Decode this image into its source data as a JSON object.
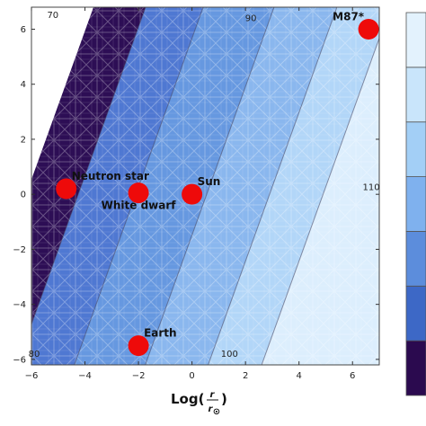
{
  "chart_data": {
    "type": "scatter",
    "title": "",
    "xlabel": {
      "prefix": "Log(",
      "numerator": "r",
      "denominator": "r",
      "denominator_subscript": "⊙",
      "suffix": ")"
    },
    "ylabel": "",
    "xlim": [
      -6,
      7
    ],
    "ylim": [
      -6.2,
      6.8
    ],
    "xticks": [
      -6,
      -4,
      -2,
      0,
      2,
      4,
      6
    ],
    "yticks": [
      -6,
      -4,
      -2,
      0,
      2,
      4,
      6
    ],
    "grid": false,
    "background": {
      "kind": "filled-contour",
      "contour_levels": [
        {
          "label": "70",
          "x": -5.2,
          "y": 6.4
        },
        {
          "label": "80",
          "x": -5.9,
          "y": -5.9
        },
        {
          "label": "90",
          "x": 2.2,
          "y": 6.3
        },
        {
          "label": "100",
          "x": 1.4,
          "y": -5.9
        },
        {
          "label": "110",
          "x": 6.7,
          "y": 0.15
        }
      ],
      "colorbar_colors": [
        "#2b0a4f",
        "#3d68c6",
        "#5c8ddc",
        "#7fb1ee",
        "#a3cff6",
        "#c9e5fb",
        "#e3f2fd"
      ],
      "band_colors": [
        "#2d0e55",
        "#4f78d2",
        "#6698e0",
        "#8ab7ee",
        "#b2d6f8",
        "#dceefd"
      ]
    },
    "points": [
      {
        "label": "Neutron star",
        "x": -4.7,
        "y": 0.2
      },
      {
        "label": "White dwarf",
        "x": -2.0,
        "y": 0.05
      },
      {
        "label": "Sun",
        "x": 0.0,
        "y": 0.0
      },
      {
        "label": "Earth",
        "x": -2.0,
        "y": -5.5
      },
      {
        "label": "M87*",
        "x": 6.6,
        "y": 6.0
      }
    ],
    "point_color": "#ee0a0a"
  }
}
